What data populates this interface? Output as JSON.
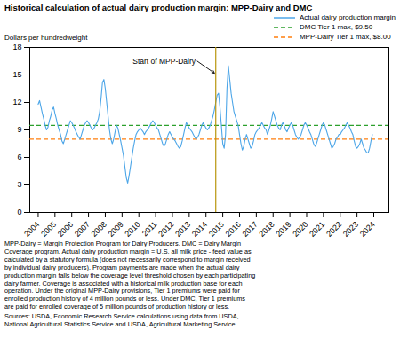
{
  "chart_data": {
    "type": "line",
    "title": "Historical calculation of actual dairy production margin: MPP-Dairy and DMC",
    "y_label": "Dollars per hundredweight",
    "x": [
      2004,
      2004.0833333333333,
      2004.1666666666667,
      2004.25,
      2004.3333333333333,
      2004.4166666666667,
      2004.5,
      2004.5833333333333,
      2004.6666666666667,
      2004.75,
      2004.8333333333333,
      2004.9166666666667,
      2005,
      2005.0833333333333,
      2005.1666666666667,
      2005.25,
      2005.3333333333333,
      2005.4166666666667,
      2005.5,
      2005.5833333333333,
      2005.6666666666667,
      2005.75,
      2005.8333333333333,
      2005.9166666666667,
      2006,
      2006.0833333333333,
      2006.1666666666667,
      2006.25,
      2006.3333333333333,
      2006.4166666666667,
      2006.5,
      2006.5833333333333,
      2006.6666666666667,
      2006.75,
      2006.8333333333333,
      2006.9166666666667,
      2007,
      2007.0833333333333,
      2007.1666666666667,
      2007.25,
      2007.3333333333333,
      2007.4166666666667,
      2007.5,
      2007.5833333333333,
      2007.6666666666667,
      2007.75,
      2007.8333333333333,
      2007.9166666666667,
      2008,
      2008.0833333333333,
      2008.1666666666667,
      2008.25,
      2008.3333333333333,
      2008.4166666666667,
      2008.5,
      2008.5833333333333,
      2008.6666666666667,
      2008.75,
      2008.8333333333333,
      2008.9166666666667,
      2009,
      2009.0833333333333,
      2009.1666666666667,
      2009.25,
      2009.3333333333333,
      2009.4166666666667,
      2009.5,
      2009.5833333333333,
      2009.6666666666667,
      2009.75,
      2009.8333333333333,
      2009.9166666666667,
      2010,
      2010.0833333333333,
      2010.1666666666667,
      2010.25,
      2010.3333333333333,
      2010.4166666666667,
      2010.5,
      2010.5833333333333,
      2010.6666666666667,
      2010.75,
      2010.8333333333333,
      2010.9166666666667,
      2011,
      2011.0833333333333,
      2011.1666666666667,
      2011.25,
      2011.3333333333333,
      2011.4166666666667,
      2011.5,
      2011.5833333333333,
      2011.6666666666667,
      2011.75,
      2011.8333333333333,
      2011.9166666666667,
      2012,
      2012.0833333333333,
      2012.1666666666667,
      2012.25,
      2012.3333333333333,
      2012.4166666666667,
      2012.5,
      2012.5833333333333,
      2012.6666666666667,
      2012.75,
      2012.8333333333333,
      2012.9166666666667,
      2013,
      2013.0833333333333,
      2013.1666666666667,
      2013.25,
      2013.3333333333333,
      2013.4166666666667,
      2013.5,
      2013.5833333333333,
      2013.6666666666667,
      2013.75,
      2013.8333333333333,
      2013.9166666666667,
      2014,
      2014.0833333333333,
      2014.1666666666667,
      2014.25,
      2014.3333333333333,
      2014.4166666666667,
      2014.5,
      2014.5833333333333,
      2014.6666666666667,
      2014.75,
      2014.8333333333333,
      2014.9166666666667,
      2015,
      2015.0833333333333,
      2015.1666666666667,
      2015.25,
      2015.3333333333333,
      2015.4166666666667,
      2015.5,
      2015.5833333333333,
      2015.6666666666667,
      2015.75,
      2015.8333333333333,
      2015.9166666666667,
      2016,
      2016.0833333333333,
      2016.1666666666667,
      2016.25,
      2016.3333333333333,
      2016.4166666666667,
      2016.5,
      2016.5833333333333,
      2016.6666666666667,
      2016.75,
      2016.8333333333333,
      2016.9166666666667,
      2017,
      2017.0833333333333,
      2017.1666666666667,
      2017.25,
      2017.3333333333333,
      2017.4166666666667,
      2017.5,
      2017.5833333333333,
      2017.6666666666667,
      2017.75,
      2017.8333333333333,
      2017.9166666666667,
      2018,
      2018.0833333333333,
      2018.1666666666667,
      2018.25,
      2018.3333333333333,
      2018.4166666666667,
      2018.5,
      2018.5833333333333,
      2018.6666666666667,
      2018.75,
      2018.8333333333333,
      2018.9166666666667,
      2019,
      2019.0833333333333,
      2019.1666666666667,
      2019.25,
      2019.3333333333333,
      2019.4166666666667,
      2019.5,
      2019.5833333333333,
      2019.6666666666667,
      2019.75,
      2019.8333333333333,
      2019.9166666666667,
      2020,
      2020.0833333333333,
      2020.1666666666667,
      2020.25,
      2020.3333333333333,
      2020.4166666666667,
      2020.5,
      2020.5833333333333,
      2020.6666666666667,
      2020.75,
      2020.8333333333333,
      2020.9166666666667,
      2021,
      2021.0833333333333,
      2021.1666666666667,
      2021.25,
      2021.3333333333333,
      2021.4166666666667,
      2021.5,
      2021.5833333333333,
      2021.6666666666667,
      2021.75,
      2021.8333333333333,
      2021.9166666666667,
      2022,
      2022.0833333333333,
      2022.1666666666667,
      2022.25,
      2022.3333333333333,
      2022.4166666666667,
      2022.5,
      2022.5833333333333,
      2022.6666666666667,
      2022.75,
      2022.8333333333333,
      2022.9166666666667,
      2023,
      2023.0833333333333,
      2023.1666666666667,
      2023.25,
      2023.3333333333333,
      2023.4166666666667,
      2023.5,
      2023.5833333333333,
      2023.6666666666667,
      2023.75,
      2023.8333333333333,
      2023.9166666666667
    ],
    "series": [
      {
        "name": "Actual dairy production margin",
        "color": "#4da6e8",
        "line_style": "solid",
        "values": [
          11.8,
          12.2,
          11.5,
          10.8,
          10.2,
          9.5,
          9.0,
          9.3,
          10.0,
          10.5,
          11.2,
          11.5,
          10.8,
          10.2,
          9.5,
          9.0,
          8.5,
          7.8,
          7.5,
          8.0,
          8.5,
          9.0,
          9.5,
          10.0,
          9.8,
          9.5,
          9.2,
          8.8,
          8.5,
          8.2,
          8.0,
          8.5,
          9.0,
          9.5,
          9.8,
          10.0,
          9.8,
          9.5,
          9.2,
          9.0,
          9.2,
          9.5,
          9.8,
          10.2,
          11.0,
          12.5,
          14.2,
          14.5,
          13.5,
          12.0,
          10.5,
          9.0,
          8.0,
          7.5,
          8.0,
          8.8,
          9.5,
          9.2,
          8.5,
          7.8,
          7.0,
          6.2,
          5.0,
          3.8,
          3.2,
          4.0,
          5.0,
          6.0,
          7.0,
          7.8,
          8.5,
          8.8,
          9.0,
          9.2,
          9.0,
          8.8,
          8.5,
          8.8,
          9.0,
          9.2,
          9.5,
          9.8,
          10.0,
          9.8,
          9.5,
          9.2,
          9.0,
          8.5,
          8.0,
          7.5,
          7.2,
          7.5,
          8.0,
          8.5,
          8.8,
          8.5,
          8.2,
          8.0,
          7.8,
          7.5,
          7.2,
          7.0,
          7.2,
          7.8,
          8.5,
          9.2,
          9.8,
          9.5,
          9.2,
          9.0,
          8.8,
          8.5,
          8.2,
          8.0,
          8.2,
          8.5,
          9.0,
          9.5,
          9.8,
          9.5,
          9.2,
          9.0,
          9.2,
          9.5,
          10.0,
          10.5,
          11.2,
          12.0,
          12.8,
          13.0,
          11.5,
          9.5,
          7.5,
          7.0,
          8.5,
          13.5,
          16.0,
          14.5,
          13.0,
          12.0,
          11.0,
          10.5,
          10.0,
          9.5,
          8.5,
          7.5,
          6.8,
          7.2,
          8.0,
          8.5,
          8.0,
          7.5,
          7.0,
          7.2,
          7.8,
          8.5,
          8.8,
          9.0,
          9.2,
          9.5,
          9.8,
          9.5,
          9.2,
          9.0,
          8.5,
          9.0,
          9.5,
          10.2,
          11.0,
          10.5,
          10.0,
          9.5,
          9.2,
          9.0,
          9.5,
          9.8,
          9.5,
          9.0,
          8.8,
          9.2,
          9.5,
          9.8,
          9.5,
          9.0,
          8.5,
          8.2,
          8.0,
          8.2,
          8.5,
          9.0,
          9.5,
          9.8,
          9.5,
          9.2,
          8.8,
          8.5,
          8.0,
          7.5,
          7.2,
          7.5,
          8.0,
          8.5,
          9.0,
          9.5,
          9.8,
          9.5,
          9.0,
          8.5,
          8.0,
          7.5,
          7.0,
          7.2,
          7.5,
          8.0,
          8.2,
          8.5,
          8.5,
          8.8,
          9.0,
          9.2,
          9.5,
          9.8,
          9.5,
          9.2,
          8.8,
          8.5,
          7.8,
          7.2,
          7.0,
          7.2,
          7.5,
          8.0,
          7.5,
          7.0,
          6.8,
          6.5,
          6.5,
          7.0,
          7.8,
          8.5
        ]
      }
    ],
    "hlines": [
      {
        "name": "DMC Tier 1 max, $9.50",
        "value": 9.5,
        "color": "#2ca02c",
        "line_style": "dashed"
      },
      {
        "name": "MPP-Dairy Tier 1 max, $8.00",
        "value": 8.0,
        "color": "#ff7f0e",
        "line_style": "dashed"
      }
    ],
    "vline": {
      "value": 2014.583,
      "color": "#b8960c"
    },
    "annotation": "Start of MPP-Dairy",
    "notes": [
      [
        "MPP-Dairy = Margin Protection Program for Dairy Producers. DMC = Dairy Margin",
        "Coverage program. Actual dairy production margin = U.S. all milk price - feed value as",
        "calculated by a statutory formula (does not necessarily correspond to margin received",
        "by individual dairy producers). Program payments are made when the actual dairy",
        "production margin falls below the coverage level threshold chosen by each participating",
        "dairy farmer.  Coverage is associated with a historical milk production base for each",
        "operation. Under the original MPP-Dairy provisions, Tier 1 premiums were paid for",
        "enrolled production history of 4 million pounds or less. Under DMC, Tier 1 premiums",
        "are paid for enrolled coverage of 5 million pounds of production history or less."
      ],
      [
        "Sources: USDA, Economic Research Service calculations using data from USDA,",
        "National Agricultural Statistics Service and USDA, Agricultural Marketing Service."
      ]
    ],
    "xlim": [
      2003.5,
      2024.9
    ],
    "xticks": [
      2004,
      2005,
      2006,
      2007,
      2008,
      2009,
      2010,
      2011,
      2012,
      2013,
      2014,
      2015,
      2016,
      2017,
      2018,
      2019,
      2020,
      2021,
      2022,
      2023,
      2024
    ],
    "ylim": [
      0,
      18
    ],
    "yticks": [
      0,
      3,
      6,
      9,
      12,
      15,
      18
    ],
    "grid": false,
    "legend": "upper right"
  }
}
